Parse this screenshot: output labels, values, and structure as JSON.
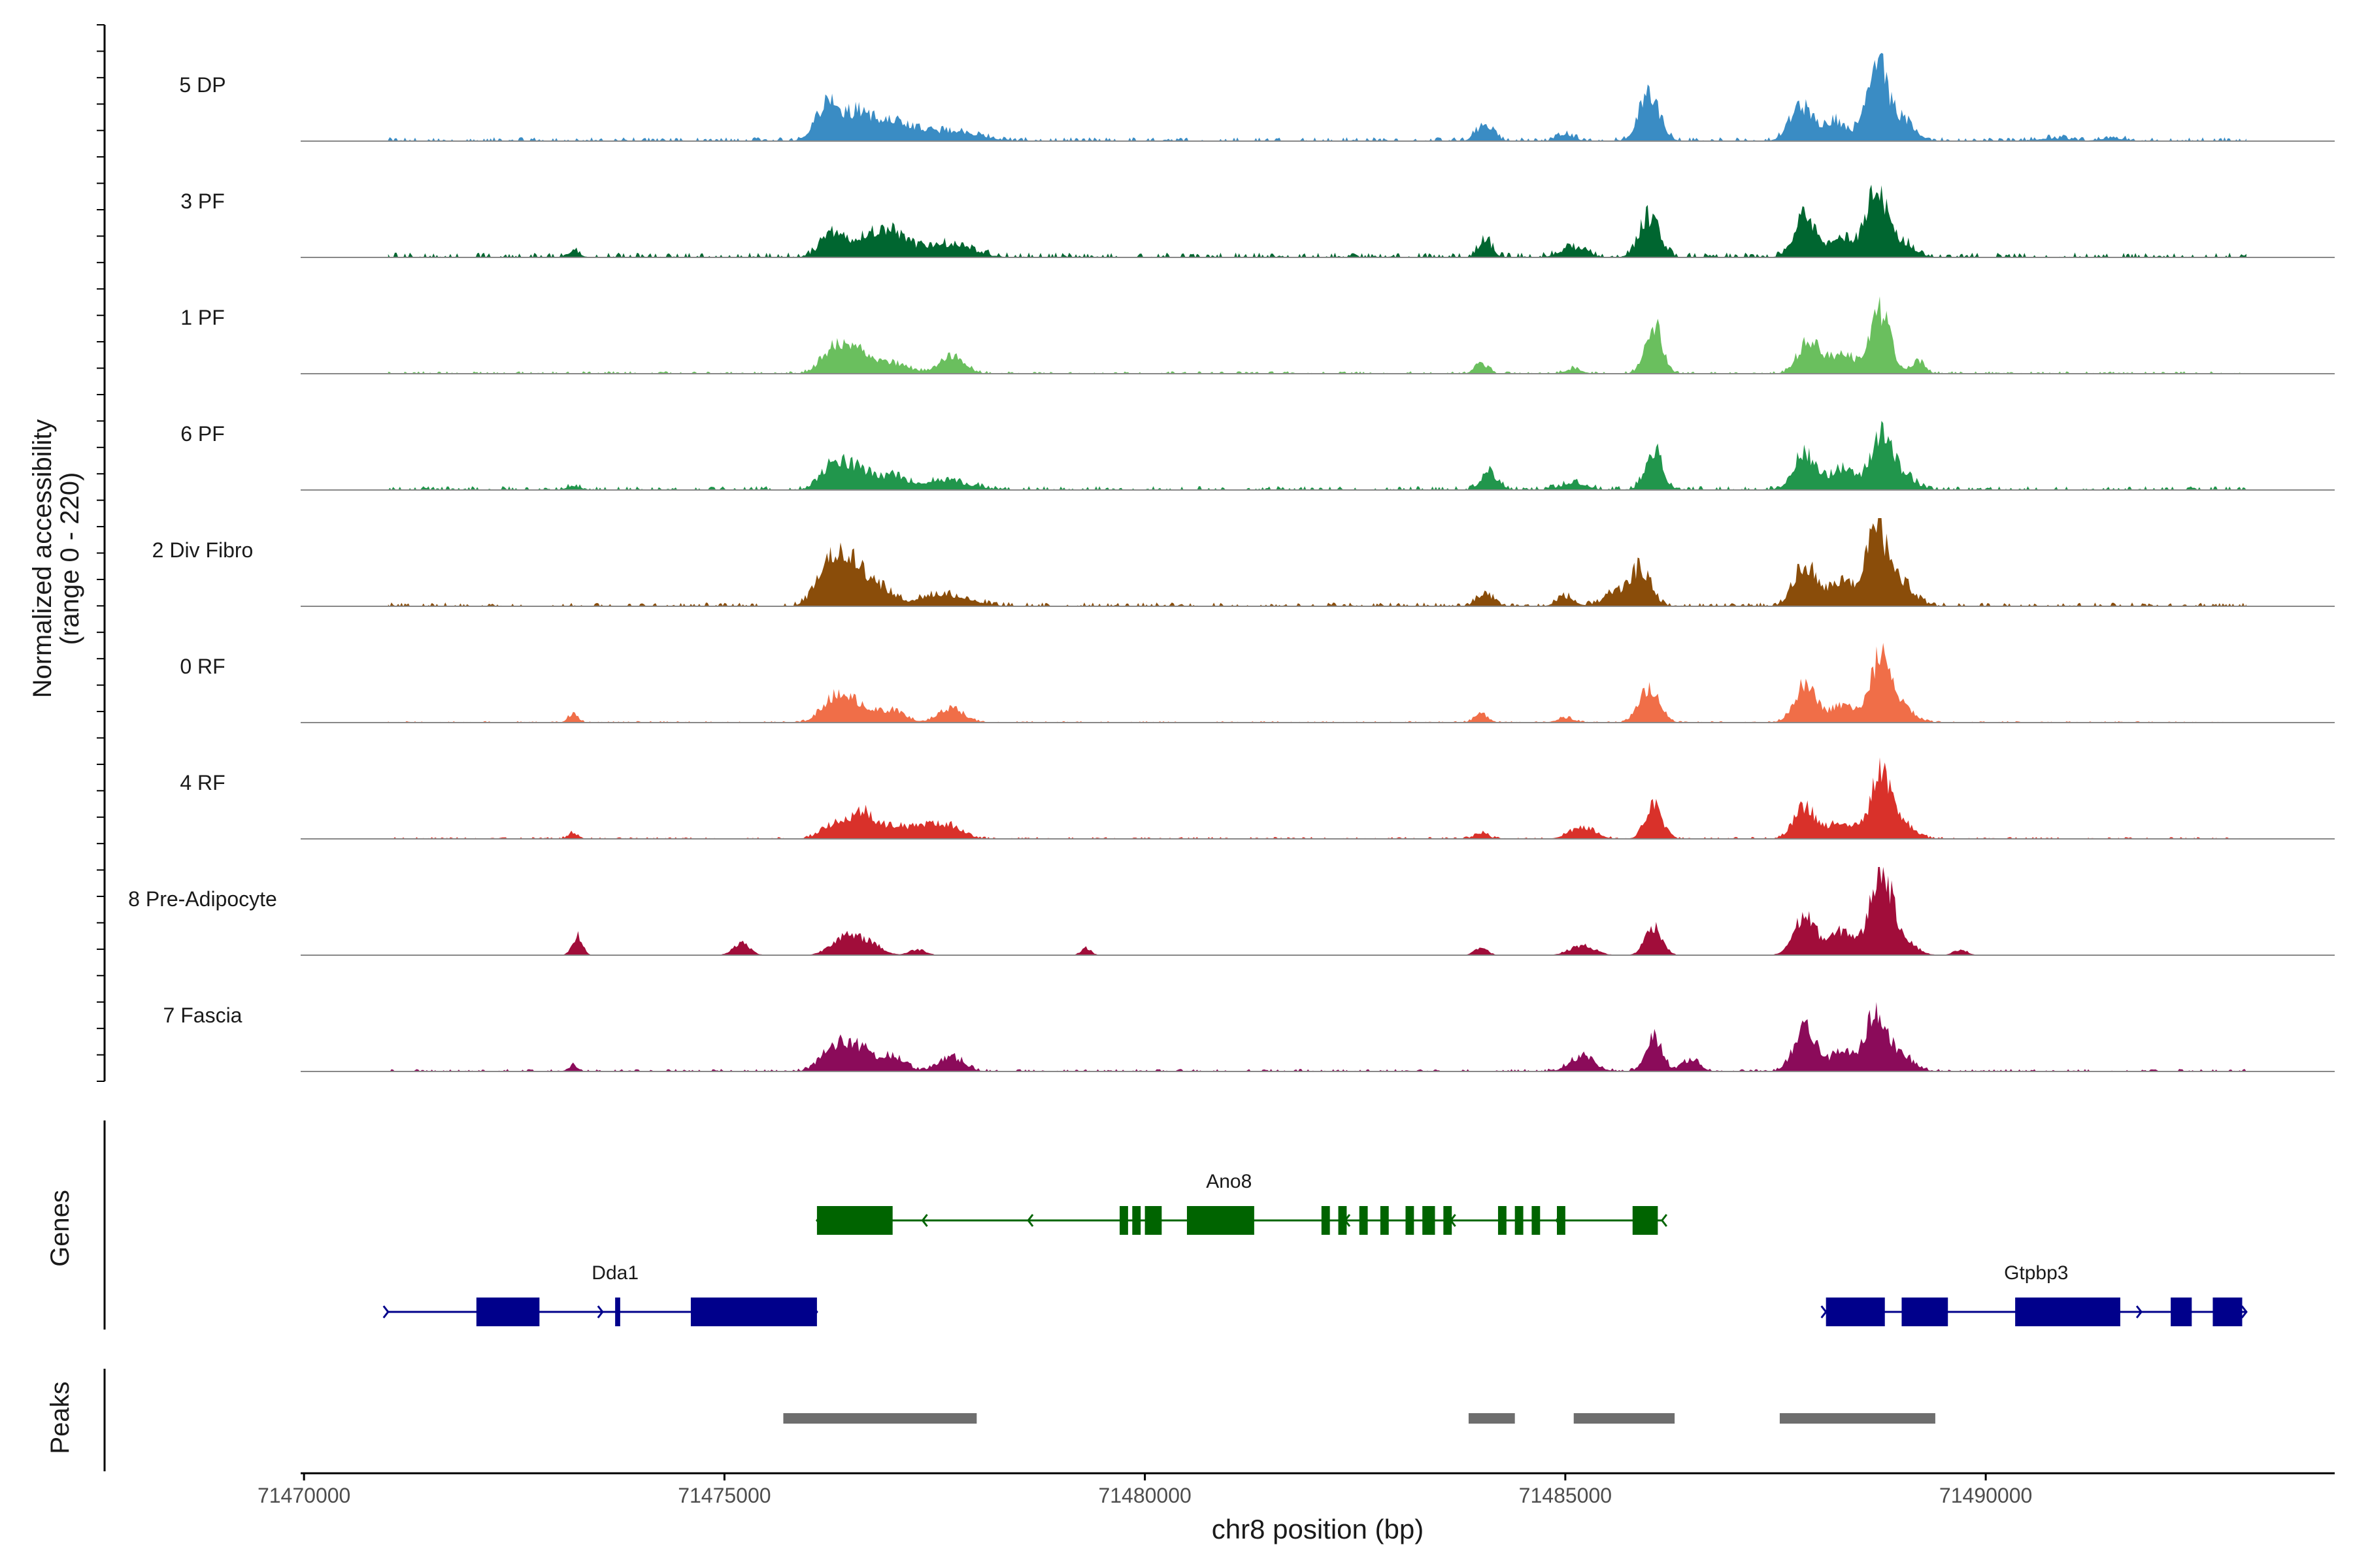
{
  "chart_data": {
    "type": "area",
    "title": "",
    "ylabel_line1": "Normalized accessibility",
    "ylabel_line2": "(range 0 - 220)",
    "yrange": [
      0,
      220
    ],
    "xlabel": "chr8 position (bp)",
    "xlim": [
      71469960,
      71494150
    ],
    "xticks": [
      71470000,
      71475000,
      71480000,
      71485000,
      71490000
    ],
    "xtick_labels": [
      "71470000",
      "71475000",
      "71480000",
      "71485000",
      "71490000"
    ],
    "genes_label": "Genes",
    "peaks_label": "Peaks",
    "series": [
      {
        "name": "5 DP",
        "color": "#3a8cc4",
        "baseline": 8,
        "peaks": [
          [
            71476250,
            150,
            85
          ],
          [
            71476600,
            120,
            40
          ],
          [
            71476850,
            200,
            38
          ],
          [
            71477200,
            150,
            20
          ],
          [
            71477700,
            300,
            22
          ],
          [
            71484050,
            100,
            35
          ],
          [
            71485000,
            100,
            15
          ],
          [
            71486000,
            120,
            95
          ],
          [
            71487800,
            130,
            70
          ],
          [
            71488200,
            150,
            42
          ],
          [
            71488700,
            120,
            165
          ],
          [
            71489000,
            150,
            40
          ],
          [
            71490800,
            200,
            6
          ],
          [
            71491500,
            150,
            6
          ]
        ]
      },
      {
        "name": "3 PF",
        "color": "#006630",
        "baseline": 10,
        "peaks": [
          [
            71476300,
            150,
            48
          ],
          [
            71476700,
            150,
            42
          ],
          [
            71477000,
            150,
            45
          ],
          [
            71477600,
            300,
            28
          ],
          [
            71473200,
            80,
            12
          ],
          [
            71484050,
            80,
            35
          ],
          [
            71485100,
            150,
            20
          ],
          [
            71486000,
            120,
            82
          ],
          [
            71487850,
            130,
            85
          ],
          [
            71488300,
            150,
            40
          ],
          [
            71488700,
            120,
            128
          ],
          [
            71489000,
            150,
            30
          ]
        ]
      },
      {
        "name": "1 PF",
        "color": "#6abf5e",
        "baseline": 5,
        "peaks": [
          [
            71476300,
            150,
            50
          ],
          [
            71476600,
            150,
            40
          ],
          [
            71477000,
            200,
            20
          ],
          [
            71477700,
            150,
            35
          ],
          [
            71484000,
            80,
            20
          ],
          [
            71485100,
            100,
            10
          ],
          [
            71486050,
            100,
            105
          ],
          [
            71487900,
            130,
            65
          ],
          [
            71488300,
            150,
            40
          ],
          [
            71488750,
            120,
            125
          ],
          [
            71489200,
            80,
            25
          ]
        ]
      },
      {
        "name": "6 PF",
        "color": "#21964c",
        "baseline": 8,
        "peaks": [
          [
            71476300,
            150,
            50
          ],
          [
            71476600,
            150,
            40
          ],
          [
            71477000,
            150,
            25
          ],
          [
            71477600,
            300,
            20
          ],
          [
            71473200,
            80,
            8
          ],
          [
            71484100,
            100,
            35
          ],
          [
            71485100,
            150,
            15
          ],
          [
            71486050,
            100,
            85
          ],
          [
            71487850,
            130,
            75
          ],
          [
            71488300,
            150,
            45
          ],
          [
            71488750,
            120,
            105
          ],
          [
            71489000,
            150,
            30
          ]
        ]
      },
      {
        "name": "2 Div Fibro",
        "color": "#8a4d0a",
        "baseline": 8,
        "peaks": [
          [
            71476250,
            150,
            95
          ],
          [
            71476550,
            150,
            75
          ],
          [
            71476850,
            150,
            35
          ],
          [
            71477600,
            300,
            25
          ],
          [
            71484050,
            100,
            25
          ],
          [
            71485000,
            100,
            20
          ],
          [
            71485900,
            120,
            75
          ],
          [
            71485600,
            150,
            25
          ],
          [
            71487850,
            130,
            85
          ],
          [
            71488300,
            150,
            50
          ],
          [
            71488700,
            120,
            160
          ],
          [
            71489000,
            150,
            45
          ]
        ]
      },
      {
        "name": "0 RF",
        "color": "#f06e48",
        "baseline": 3,
        "peaks": [
          [
            71476300,
            150,
            50
          ],
          [
            71476600,
            150,
            35
          ],
          [
            71477000,
            150,
            25
          ],
          [
            71477700,
            150,
            30
          ],
          [
            71473200,
            60,
            18
          ],
          [
            71484000,
            80,
            18
          ],
          [
            71485000,
            100,
            10
          ],
          [
            71486000,
            120,
            70
          ],
          [
            71487850,
            130,
            75
          ],
          [
            71488300,
            150,
            35
          ],
          [
            71488750,
            120,
            130
          ],
          [
            71489000,
            150,
            30
          ]
        ]
      },
      {
        "name": "4 RF",
        "color": "#d9312a",
        "baseline": 4,
        "peaks": [
          [
            71476300,
            150,
            30
          ],
          [
            71476650,
            150,
            55
          ],
          [
            71477050,
            150,
            25
          ],
          [
            71477400,
            150,
            25
          ],
          [
            71477700,
            150,
            25
          ],
          [
            71473200,
            60,
            12
          ],
          [
            71484000,
            80,
            12
          ],
          [
            71485200,
            150,
            25
          ],
          [
            71486050,
            100,
            70
          ],
          [
            71487850,
            130,
            65
          ],
          [
            71488300,
            150,
            35
          ],
          [
            71488750,
            120,
            125
          ],
          [
            71489000,
            150,
            30
          ]
        ]
      },
      {
        "name": "8 Pre-Adipocyte",
        "color": "#a10d3a",
        "baseline": 0,
        "peaks": [
          [
            71473250,
            60,
            40
          ],
          [
            71475200,
            100,
            25
          ],
          [
            71476400,
            150,
            35
          ],
          [
            71476700,
            150,
            28
          ],
          [
            71477300,
            100,
            12
          ],
          [
            71479300,
            60,
            15
          ],
          [
            71484000,
            80,
            15
          ],
          [
            71485200,
            150,
            20
          ],
          [
            71486050,
            100,
            60
          ],
          [
            71487850,
            130,
            80
          ],
          [
            71488300,
            150,
            50
          ],
          [
            71488750,
            120,
            175
          ],
          [
            71489000,
            150,
            35
          ],
          [
            71489700,
            80,
            12
          ]
        ]
      },
      {
        "name": "7 Fascia",
        "color": "#8b0b5a",
        "baseline": 5,
        "peaks": [
          [
            71476300,
            150,
            50
          ],
          [
            71476600,
            150,
            45
          ],
          [
            71477000,
            150,
            30
          ],
          [
            71477700,
            150,
            30
          ],
          [
            71473200,
            60,
            12
          ],
          [
            71485200,
            150,
            30
          ],
          [
            71486050,
            100,
            70
          ],
          [
            71486500,
            100,
            25
          ],
          [
            71487850,
            130,
            85
          ],
          [
            71488300,
            150,
            40
          ],
          [
            71488700,
            120,
            120
          ],
          [
            71489000,
            150,
            30
          ]
        ]
      }
    ],
    "genes": [
      {
        "name": "Ano8",
        "strand": "-",
        "row": 0,
        "color": "#006400",
        "start": 71476100,
        "end": 71486150,
        "label_pos": 71481000,
        "exons": [
          [
            71476100,
            71477000
          ],
          [
            71479700,
            71479800
          ],
          [
            71479850,
            71479950
          ],
          [
            71480000,
            71480200
          ],
          [
            71480500,
            71481300
          ],
          [
            71482100,
            71482200
          ],
          [
            71482300,
            71482400
          ],
          [
            71482550,
            71482650
          ],
          [
            71482800,
            71482900
          ],
          [
            71483100,
            71483200
          ],
          [
            71483300,
            71483450
          ],
          [
            71483550,
            71483650
          ],
          [
            71484200,
            71484300
          ],
          [
            71484400,
            71484500
          ],
          [
            71484600,
            71484700
          ],
          [
            71484900,
            71485000
          ],
          [
            71485800,
            71486100
          ]
        ]
      },
      {
        "name": "Dda1",
        "strand": "+",
        "row": 1,
        "color": "#00008b",
        "start": 71471000,
        "end": 71476100,
        "label_pos": 71473700,
        "exons": [
          [
            71472050,
            71472800
          ],
          [
            71473700,
            71473760
          ],
          [
            71474600,
            71476100
          ]
        ]
      },
      {
        "name": "Gtpbp3",
        "strand": "+",
        "row": 1,
        "color": "#00008b",
        "start": 71488100,
        "end": 71493100,
        "label_pos": 71490600,
        "exons": [
          [
            71488100,
            71488800
          ],
          [
            71489000,
            71489550
          ],
          [
            71490350,
            71491600
          ],
          [
            71492200,
            71492450
          ],
          [
            71492700,
            71493050
          ]
        ]
      }
    ],
    "peaks": [
      [
        71475700,
        71478000
      ],
      [
        71483850,
        71484400
      ],
      [
        71485100,
        71486300
      ],
      [
        71487550,
        71489400
      ]
    ]
  }
}
